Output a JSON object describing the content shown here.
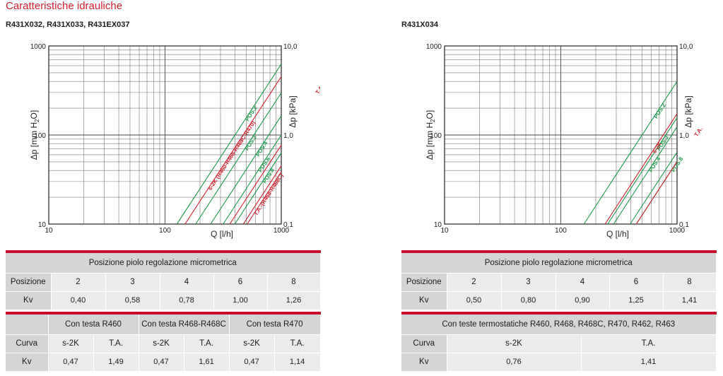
{
  "header": {
    "title": "Caratteristiche idrauliche",
    "left_models": "R431X032, R431X033, R431EX037",
    "right_models": "R431X034"
  },
  "chart_data": [
    {
      "type": "line",
      "log_x": true,
      "log_y": true,
      "x_ticks": [
        "10",
        "100",
        "1000"
      ],
      "y_ticks": [
        "10",
        "100",
        "1000"
      ],
      "y2_ticks": [
        "0,1",
        "1,0",
        "10,0"
      ],
      "xlabel": "Q [l/h]",
      "ylabel": "Δp [mm H2O]",
      "ylabel_main": "Δp [mm H",
      "ylabel_sub": "2",
      "ylabel_end": "O]",
      "y2label": "Δp [kPa]",
      "xlim": [
        10,
        1000
      ],
      "ylim": [
        10,
        1000
      ],
      "grid": true,
      "series": [
        {
          "name": "POS.2",
          "kv": 0.4,
          "color": "#1a9a4b"
        },
        {
          "name": "POS.3",
          "kv": 0.58,
          "color": "#1a9a4b"
        },
        {
          "name": "POS.4",
          "kv": 0.78,
          "color": "#1a9a4b"
        },
        {
          "name": "POS.6",
          "kv": 1.0,
          "color": "#1a9a4b"
        },
        {
          "name": "POS.8",
          "kv": 1.26,
          "color": "#1a9a4b"
        },
        {
          "name": "s-2K (R460-R468-R468C-R470)",
          "kv": 0.47,
          "color": "#d21f2b"
        },
        {
          "name": "T.A.-(R470)",
          "kv": 1.14,
          "color": "#d21f2b"
        },
        {
          "name": "T.A.-(R460)",
          "kv": 1.49,
          "color": "#d21f2b"
        },
        {
          "name": "T.A.-(R468-R468C)",
          "kv": 1.61,
          "color": "#d21f2b"
        }
      ]
    },
    {
      "type": "line",
      "log_x": true,
      "log_y": true,
      "x_ticks": [
        "10",
        "100",
        "1000"
      ],
      "y_ticks": [
        "10",
        "100",
        "1000"
      ],
      "y2_ticks": [
        "0,1",
        "1,0",
        "10,0"
      ],
      "xlabel": "Q [l/h]",
      "ylabel": "Δp [mm H2O]",
      "ylabel_main": "Δp [mm H",
      "ylabel_sub": "2",
      "ylabel_end": "O]",
      "y2label": "Δp [kPa]",
      "xlim": [
        10,
        1000
      ],
      "ylim": [
        10,
        1000
      ],
      "grid": true,
      "series": [
        {
          "name": "POS.2",
          "kv": 0.5,
          "color": "#1a9a4b"
        },
        {
          "name": "POS.3",
          "kv": 0.8,
          "color": "#1a9a4b"
        },
        {
          "name": "POS.4",
          "kv": 0.9,
          "color": "#1a9a4b"
        },
        {
          "name": "POS.6",
          "kv": 1.25,
          "color": "#1a9a4b"
        },
        {
          "name": "POS.8",
          "kv": 1.41,
          "color": "#1a9a4b"
        },
        {
          "name": "s-2K",
          "kv": 0.76,
          "color": "#d21f2b"
        },
        {
          "name": "T.A.",
          "kv": 1.41,
          "color": "#d21f2b"
        }
      ]
    }
  ],
  "left_table": {
    "title": "Posizione piolo regolazione micrometrica",
    "pos_label": "Posizione",
    "positions": [
      "2",
      "3",
      "4",
      "6",
      "8"
    ],
    "kv_label": "Kv",
    "kv": [
      "0,40",
      "0,58",
      "0,78",
      "1,00",
      "1,26"
    ],
    "groups": [
      "Con testa R460",
      "Con testa R468-R468C",
      "Con testa R470"
    ],
    "curve_label": "Curva",
    "curves": [
      "s-2K",
      "T.A.",
      "s-2K",
      "T.A.",
      "s-2K",
      "T.A."
    ],
    "curve_kv": [
      "0,47",
      "1,49",
      "0,47",
      "1,61",
      "0,47",
      "1,14"
    ]
  },
  "right_table": {
    "title": "Posizione piolo regolazione micrometrica",
    "pos_label": "Posizione",
    "positions": [
      "2",
      "3",
      "4",
      "6",
      "8"
    ],
    "kv_label": "Kv",
    "kv": [
      "0,50",
      "0,80",
      "0,90",
      "1,25",
      "1,41"
    ],
    "group": "Con teste termostatiche R460, R468, R468C, R470, R462, R463",
    "curve_label": "Curva",
    "curves": [
      "s-2K",
      "T.A."
    ],
    "curve_kv": [
      "0,76",
      "1,41"
    ]
  }
}
